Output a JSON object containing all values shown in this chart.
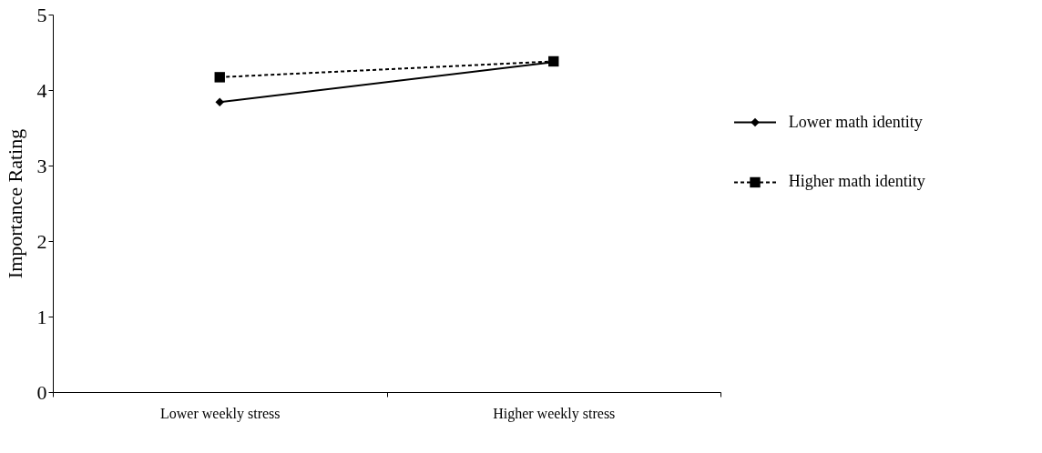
{
  "chart_data": {
    "type": "line",
    "ylabel": "Importance Rating",
    "categories": [
      "Lower weekly stress",
      "Higher weekly stress"
    ],
    "series": [
      {
        "name": "Lower math identity",
        "color": "#000000",
        "values": [
          3.84,
          4.37
        ],
        "marker": "diamond",
        "line_style": "solid"
      },
      {
        "name": "Higher math identity",
        "color": "#000000",
        "values": [
          4.17,
          4.38
        ],
        "marker": "square",
        "line_style": "dashed"
      }
    ],
    "ylim": [
      0,
      5
    ],
    "yticks": [
      0,
      1,
      2,
      3,
      4,
      5
    ],
    "grid": false,
    "legend": "right"
  }
}
